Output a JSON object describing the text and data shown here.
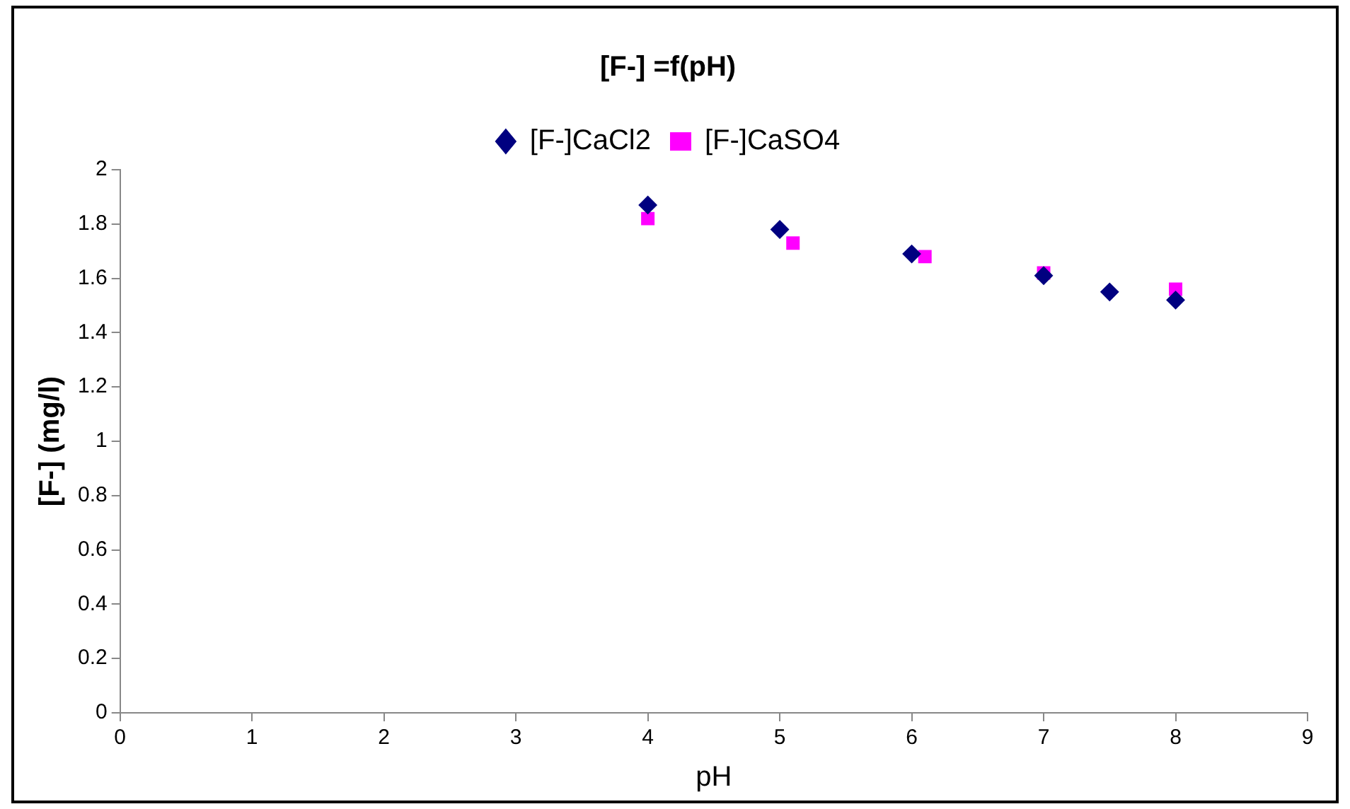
{
  "chart_data": {
    "type": "scatter",
    "title": "[F-] =f(pH)",
    "xlabel": "pH",
    "ylabel": "[F-] (mg/l)",
    "series": [
      {
        "name": "[F-]CaCl2",
        "color": "#000080",
        "marker": "diamond",
        "x": [
          4,
          5,
          6,
          7,
          7.5,
          8
        ],
        "values": [
          1.87,
          1.78,
          1.69,
          1.61,
          1.55,
          1.52
        ]
      },
      {
        "name": "[F-]CaSO4",
        "color": "#ff00ff",
        "marker": "square",
        "x": [
          4,
          5.1,
          6.1,
          7,
          8
        ],
        "values": [
          1.82,
          1.73,
          1.68,
          1.62,
          1.56
        ]
      }
    ],
    "xlim": [
      0,
      9
    ],
    "xticks": [
      0,
      1,
      2,
      3,
      4,
      5,
      6,
      7,
      8,
      9
    ],
    "ylim": [
      0,
      2
    ],
    "yticks": [
      0,
      0.2,
      0.4,
      0.6,
      0.8,
      1,
      1.2,
      1.4,
      1.6,
      1.8,
      2
    ],
    "grid": false,
    "legend": "top"
  }
}
